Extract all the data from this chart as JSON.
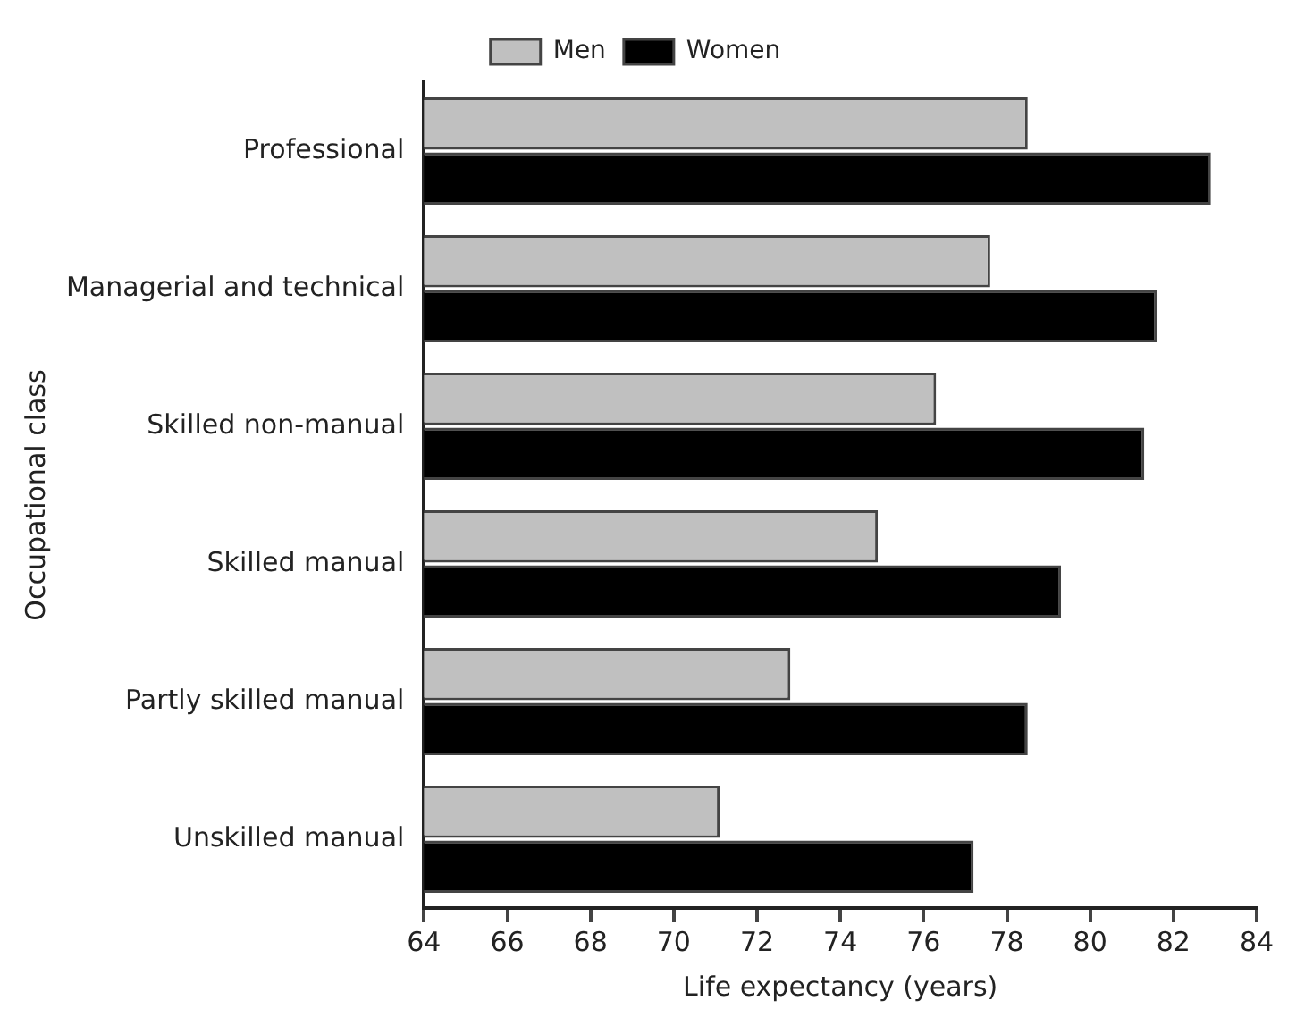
{
  "chart_data": {
    "type": "bar",
    "orientation": "horizontal",
    "xlabel": "Life expectancy (years)",
    "ylabel": "Occupational class",
    "categories": [
      "Professional",
      "Managerial and technical",
      "Skilled non-manual",
      "Skilled manual",
      "Partly skilled manual",
      "Unskilled manual"
    ],
    "series": [
      {
        "name": "Men",
        "color": "#c0c0c0",
        "values": [
          78.5,
          77.6,
          76.3,
          74.9,
          72.8,
          71.1
        ]
      },
      {
        "name": "Women",
        "color": "#000000",
        "values": [
          82.9,
          81.6,
          81.3,
          79.3,
          78.5,
          77.2
        ]
      }
    ],
    "xlim": [
      64,
      84
    ],
    "xticks": [
      64,
      66,
      68,
      70,
      72,
      74,
      76,
      78,
      80,
      82,
      84
    ],
    "grid": false,
    "legend": "top"
  }
}
